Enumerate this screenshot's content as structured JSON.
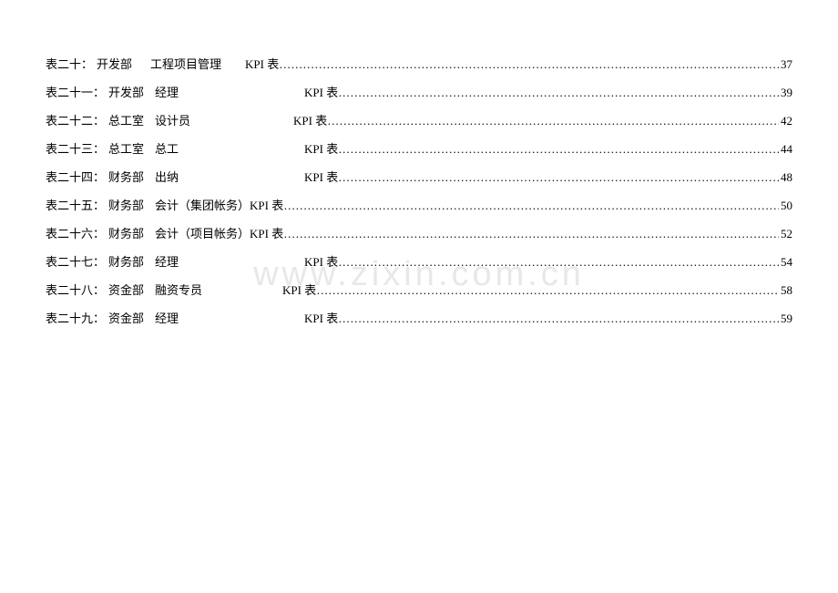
{
  "watermark": "www.zixin.com.cn",
  "entries": [
    {
      "label": "表二十：",
      "dept": "开发部",
      "role": "工程项目管理",
      "kpi": "KPI 表",
      "page": "37",
      "role_indent": "20px",
      "kpi_indent": "4px"
    },
    {
      "label": "表二十一：",
      "dept": "开发部",
      "role": "经理",
      "kpi": "KPI 表",
      "page": "39",
      "role_indent": "12px",
      "kpi_indent": "64px"
    },
    {
      "label": "表二十二：",
      "dept": "总工室",
      "role": "设计员",
      "kpi": "KPI 表",
      "page": "42",
      "role_indent": "12px",
      "kpi_indent": "52px"
    },
    {
      "label": "表二十三：",
      "dept": "总工室",
      "role": "总工",
      "kpi": "KPI 表",
      "page": "44",
      "role_indent": "12px",
      "kpi_indent": "64px"
    },
    {
      "label": "表二十四：",
      "dept": "财务部",
      "role": "出纳",
      "kpi": "KPI 表",
      "page": "48",
      "role_indent": "12px",
      "kpi_indent": "64px"
    },
    {
      "label": "表二十五：",
      "dept": "财务部",
      "role": "会计（集团帐务）",
      "kpi": "KPI 表",
      "page": "50",
      "role_indent": "12px",
      "kpi_indent": "0px"
    },
    {
      "label": "表二十六：",
      "dept": "财务部",
      "role": "会计（项目帐务）",
      "kpi": "KPI 表",
      "page": "52",
      "role_indent": "12px",
      "kpi_indent": "0px"
    },
    {
      "label": "表二十七：",
      "dept": "财务部",
      "role": "经理",
      "kpi": "KPI 表",
      "page": "54",
      "role_indent": "12px",
      "kpi_indent": "64px"
    },
    {
      "label": "表二十八：",
      "dept": "资金部",
      "role": "融资专员",
      "kpi": "KPI 表",
      "page": "58",
      "role_indent": "12px",
      "kpi_indent": "40px"
    },
    {
      "label": "表二十九：",
      "dept": "资金部",
      "role": "经理",
      "kpi": "KPI 表",
      "page": "59",
      "role_indent": "12px",
      "kpi_indent": "64px"
    }
  ],
  "dots_fill": "……………………………………………………………………………………………………………………………………………………………."
}
